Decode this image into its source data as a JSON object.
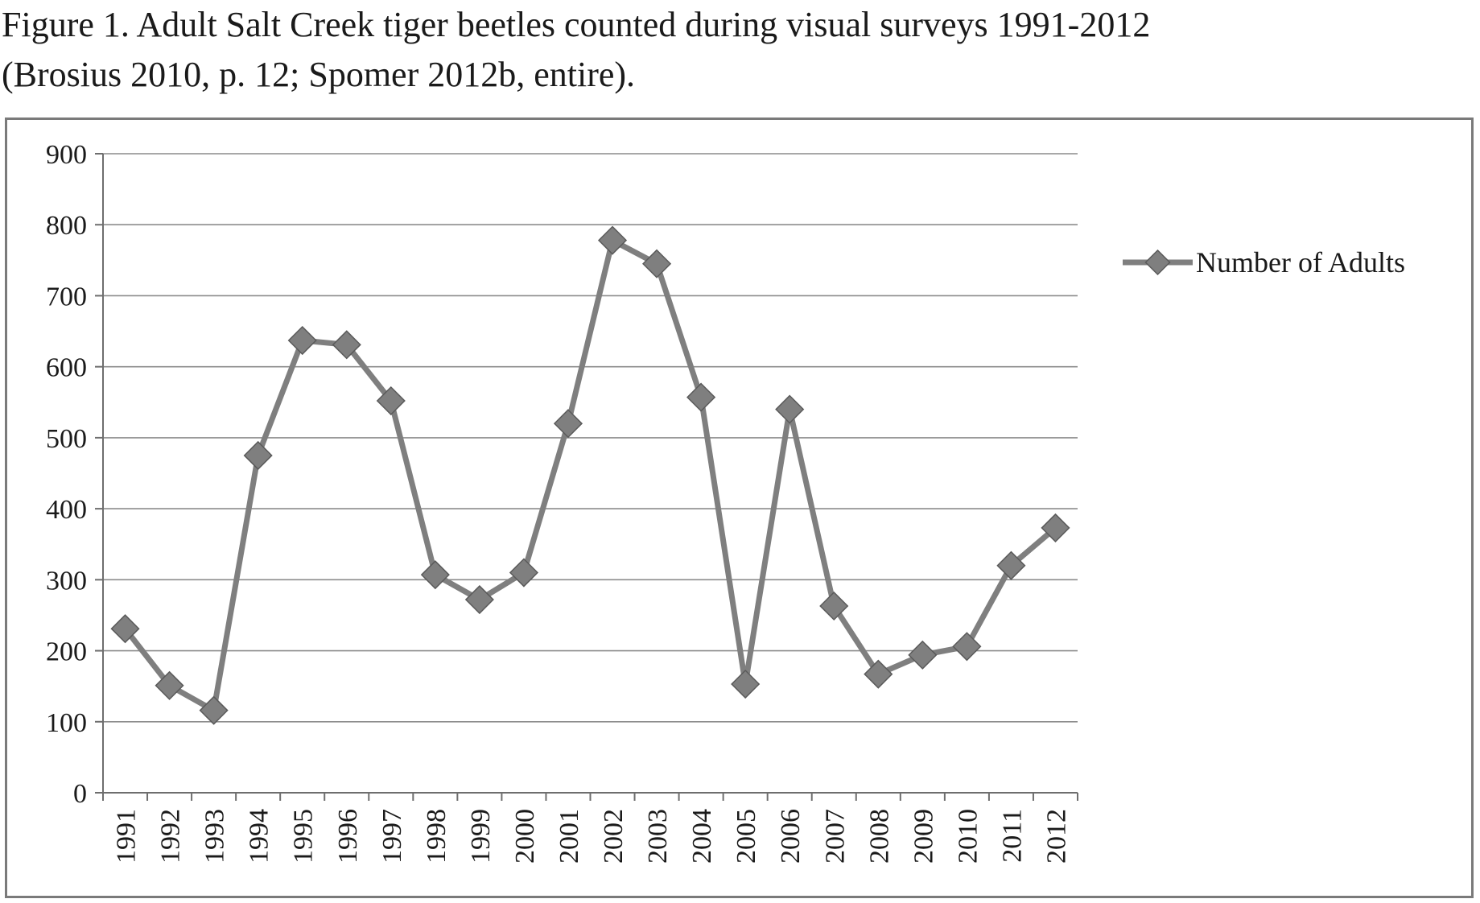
{
  "caption": {
    "line1": "Figure 1.  Adult Salt Creek tiger beetles counted during visual surveys 1991-2012",
    "line2": "(Brosius 2010, p. 12; Spomer 2012b, entire)."
  },
  "chart_data": {
    "type": "line",
    "title": "",
    "xlabel": "",
    "ylabel": "",
    "x": [
      "1991",
      "1992",
      "1993",
      "1994",
      "1995",
      "1996",
      "1997",
      "1998",
      "1999",
      "2000",
      "2001",
      "2002",
      "2003",
      "2004",
      "2005",
      "2006",
      "2007",
      "2008",
      "2009",
      "2010",
      "2011",
      "2012"
    ],
    "series": [
      {
        "name": "Number of Adults",
        "values": [
          231,
          151,
          116,
          475,
          637,
          631,
          552,
          307,
          272,
          310,
          520,
          778,
          745,
          557,
          153,
          540,
          263,
          167,
          194,
          206,
          320,
          373
        ],
        "color": "#7f7f7f",
        "marker": "diamond"
      }
    ],
    "ylim": [
      0,
      900
    ],
    "yticks": [
      "0",
      "100",
      "200",
      "300",
      "400",
      "500",
      "600",
      "700",
      "800",
      "900"
    ],
    "grid": true,
    "legend": "right"
  }
}
